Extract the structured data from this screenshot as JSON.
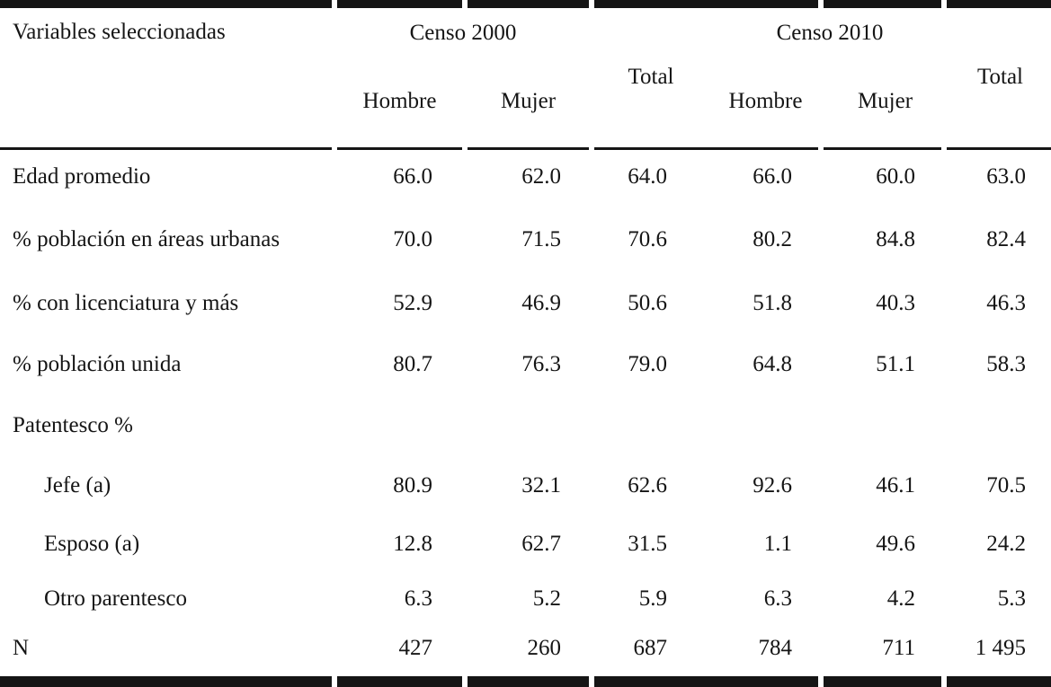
{
  "colors": {
    "text": "#151515",
    "rule": "#151515",
    "background": "#ffffff"
  },
  "table": {
    "corner_label": "Variables seleccionadas",
    "groups": [
      {
        "label": "Censo 2000"
      },
      {
        "label": "Censo 2010"
      }
    ],
    "subheaders": {
      "hombre": "Hombre",
      "mujer": "Mujer",
      "total": "Total"
    },
    "rows": [
      {
        "label": "Edad promedio",
        "indent": false,
        "values": [
          "66.0",
          "62.0",
          "64.0",
          "66.0",
          "60.0",
          "63.0"
        ]
      },
      {
        "label": "% población en áreas urbanas",
        "indent": false,
        "values": [
          "70.0",
          "71.5",
          "70.6",
          "80.2",
          "84.8",
          "82.4"
        ]
      },
      {
        "label": "% con licenciatura y más",
        "indent": false,
        "values": [
          "52.9",
          "46.9",
          "50.6",
          "51.8",
          "40.3",
          "46.3"
        ]
      },
      {
        "label": "% población unida",
        "indent": false,
        "values": [
          "80.7",
          "76.3",
          "79.0",
          "64.8",
          "51.1",
          "58.3"
        ]
      },
      {
        "label": "Patentesco %",
        "indent": false,
        "values": [
          "",
          "",
          "",
          "",
          "",
          ""
        ]
      },
      {
        "label": "Jefe (a)",
        "indent": true,
        "values": [
          "80.9",
          "32.1",
          "62.6",
          "92.6",
          "46.1",
          "70.5"
        ]
      },
      {
        "label": "Esposo (a)",
        "indent": true,
        "values": [
          "12.8",
          "62.7",
          "31.5",
          "1.1",
          "49.6",
          "24.2"
        ]
      },
      {
        "label": "Otro parentesco",
        "indent": true,
        "values": [
          "6.3",
          "5.2",
          "5.9",
          "6.3",
          "4.2",
          "5.3"
        ]
      },
      {
        "label": "N",
        "indent": false,
        "values": [
          "427",
          "260",
          "687",
          "784",
          "711",
          "1 495"
        ]
      }
    ]
  }
}
